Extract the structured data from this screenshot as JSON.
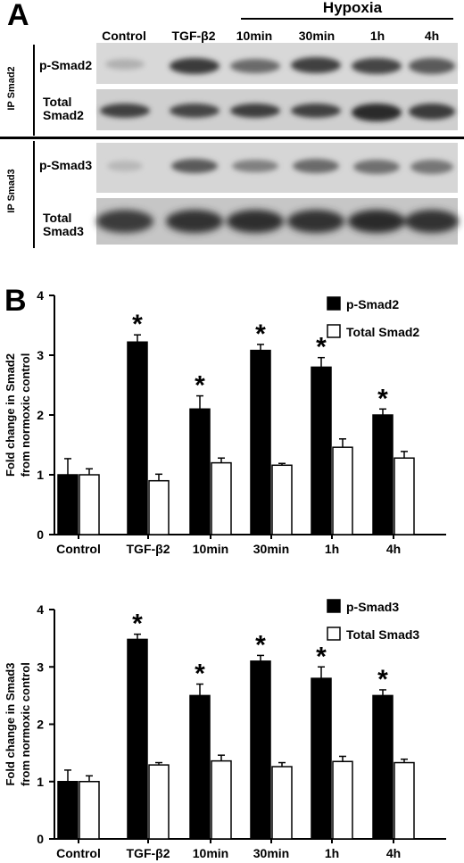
{
  "panel_a": {
    "letter": "A",
    "hypoxia_label": "Hypoxia",
    "lanes": [
      "Control",
      "TGF-β2",
      "10min",
      "30min",
      "1h",
      "4h"
    ],
    "ip_groups": [
      {
        "label": "IP Smad2",
        "rows": [
          {
            "line1": "p-Smad2",
            "line2": ""
          },
          {
            "line1": "Total",
            "line2": "Smad2"
          }
        ]
      },
      {
        "label": "IP Smad3",
        "rows": [
          {
            "line1": "p-Smad3",
            "line2": ""
          },
          {
            "line1": "Total",
            "line2": "Smad3"
          }
        ]
      }
    ]
  },
  "panel_b": {
    "letter": "B"
  },
  "chart_data": [
    {
      "type": "bar",
      "categories": [
        "Control",
        "TGF-β2",
        "10min",
        "30min",
        "1h",
        "4h"
      ],
      "ylabel_line1": "Fold change in Smad2",
      "ylabel_line2": "from normoxic control",
      "ylim": [
        0,
        4
      ],
      "yticks": [
        "0",
        "1",
        "2",
        "3",
        "4"
      ],
      "significance_marker": "*",
      "series": [
        {
          "name": "p-Smad2",
          "color": "#000000",
          "values": [
            1.0,
            3.22,
            2.1,
            3.08,
            2.8,
            2.0
          ],
          "errors": [
            0.27,
            0.12,
            0.22,
            0.1,
            0.16,
            0.1
          ],
          "significant": [
            false,
            true,
            true,
            true,
            true,
            true
          ]
        },
        {
          "name": "Total Smad2",
          "color": "#ffffff",
          "values": [
            1.0,
            0.9,
            1.2,
            1.16,
            1.46,
            1.28
          ],
          "errors": [
            0.1,
            0.11,
            0.08,
            0.03,
            0.14,
            0.11
          ],
          "significant": [
            false,
            false,
            false,
            false,
            false,
            false
          ]
        }
      ]
    },
    {
      "type": "bar",
      "categories": [
        "Control",
        "TGF-β2",
        "10min",
        "30min",
        "1h",
        "4h"
      ],
      "ylabel_line1": "Fold change in Smad3",
      "ylabel_line2": "from normoxic control",
      "ylim": [
        0,
        4
      ],
      "yticks": [
        "0",
        "1",
        "2",
        "3",
        "4"
      ],
      "significance_marker": "*",
      "series": [
        {
          "name": "p-Smad3",
          "color": "#000000",
          "values": [
            1.0,
            3.48,
            2.5,
            3.1,
            2.8,
            2.5
          ],
          "errors": [
            0.2,
            0.09,
            0.2,
            0.1,
            0.2,
            0.1
          ],
          "significant": [
            false,
            true,
            true,
            true,
            true,
            true
          ]
        },
        {
          "name": "Total Smad3",
          "color": "#ffffff",
          "values": [
            1.0,
            1.29,
            1.36,
            1.26,
            1.35,
            1.33
          ],
          "errors": [
            0.1,
            0.04,
            0.1,
            0.07,
            0.09,
            0.06
          ],
          "significant": [
            false,
            false,
            false,
            false,
            false,
            false
          ]
        }
      ]
    }
  ]
}
